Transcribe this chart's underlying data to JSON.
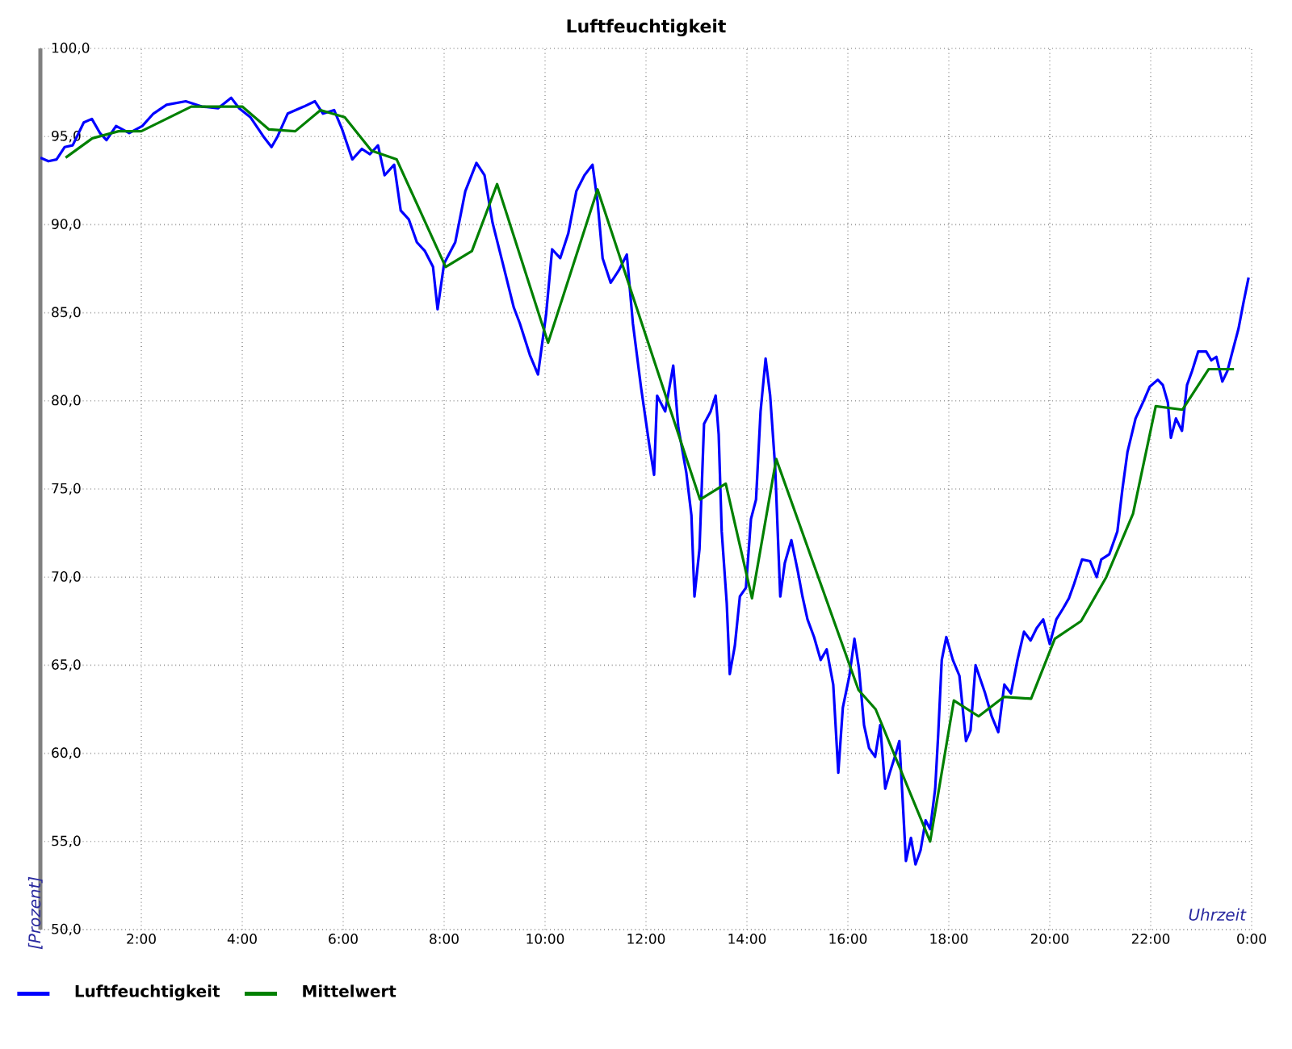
{
  "chart_data": {
    "type": "line",
    "title": "Luftfeuchtigkeit",
    "xlabel": "Uhrzeit",
    "ylabel": "[Prozent]",
    "xlim": [
      0,
      24
    ],
    "ylim": [
      50,
      100
    ],
    "xticks": [
      {
        "value": 0,
        "label": null
      },
      {
        "value": 2,
        "label": "2:00"
      },
      {
        "value": 4,
        "label": "4:00"
      },
      {
        "value": 6,
        "label": "6:00"
      },
      {
        "value": 8,
        "label": "8:00"
      },
      {
        "value": 10,
        "label": "10:00"
      },
      {
        "value": 12,
        "label": "12:00"
      },
      {
        "value": 14,
        "label": "14:00"
      },
      {
        "value": 16,
        "label": "16:00"
      },
      {
        "value": 18,
        "label": "18:00"
      },
      {
        "value": 20,
        "label": "20:00"
      },
      {
        "value": 22,
        "label": "22:00"
      },
      {
        "value": 24,
        "label": "0:00"
      }
    ],
    "yticks": [
      {
        "value": 50,
        "label": "50,0"
      },
      {
        "value": 55,
        "label": "55,0"
      },
      {
        "value": 60,
        "label": "60,0"
      },
      {
        "value": 65,
        "label": "65,0"
      },
      {
        "value": 70,
        "label": "70,0"
      },
      {
        "value": 75,
        "label": "75,0"
      },
      {
        "value": 80,
        "label": "80,0"
      },
      {
        "value": 85,
        "label": "85,0"
      },
      {
        "value": 90,
        "label": "90,0"
      },
      {
        "value": 95,
        "label": "95,0"
      },
      {
        "value": 100,
        "label": "100,0"
      }
    ],
    "grid": true,
    "legend": "bottom",
    "series": [
      {
        "name": "Luftfeuchtigkeit",
        "color": "#0000ff",
        "x": [
          0,
          0.16,
          0.32,
          0.48,
          0.64,
          0.86,
          1.02,
          1.18,
          1.31,
          1.5,
          1.76,
          2.02,
          2.24,
          2.5,
          2.88,
          3.2,
          3.52,
          3.78,
          3.94,
          4.16,
          4.42,
          4.58,
          4.7,
          4.9,
          5.22,
          5.44,
          5.6,
          5.82,
          5.98,
          6.18,
          6.37,
          6.53,
          6.69,
          6.82,
          7.01,
          7.14,
          7.3,
          7.46,
          7.62,
          7.78,
          7.87,
          8.0,
          8.22,
          8.42,
          8.64,
          8.8,
          8.96,
          9.18,
          9.38,
          9.5,
          9.7,
          9.86,
          10.02,
          10.14,
          10.3,
          10.46,
          10.62,
          10.78,
          10.94,
          11.04,
          11.14,
          11.3,
          11.46,
          11.62,
          11.74,
          11.9,
          12.06,
          12.16,
          12.22,
          12.38,
          12.54,
          12.64,
          12.8,
          12.9,
          12.96,
          13.06,
          13.15,
          13.28,
          13.38,
          13.44,
          13.5,
          13.6,
          13.66,
          13.76,
          13.86,
          13.98,
          14.08,
          14.18,
          14.27,
          14.37,
          14.46,
          14.56,
          14.66,
          14.75,
          14.88,
          15.01,
          15.1,
          15.2,
          15.33,
          15.46,
          15.58,
          15.71,
          15.81,
          15.9,
          16.03,
          16.13,
          16.22,
          16.32,
          16.42,
          16.54,
          16.64,
          16.74,
          16.83,
          16.93,
          17.02,
          17.09,
          17.15,
          17.25,
          17.34,
          17.44,
          17.54,
          17.63,
          17.73,
          17.79,
          17.86,
          17.95,
          18.08,
          18.21,
          18.34,
          18.43,
          18.53,
          18.72,
          18.85,
          18.98,
          19.1,
          19.23,
          19.36,
          19.49,
          19.62,
          19.74,
          19.87,
          20.0,
          20.13,
          20.26,
          20.38,
          20.48,
          20.64,
          20.8,
          20.93,
          21.02,
          21.18,
          21.34,
          21.44,
          21.54,
          21.7,
          21.86,
          21.98,
          22.14,
          22.24,
          22.34,
          22.4,
          22.5,
          22.62,
          22.72,
          22.82,
          22.94,
          23.1,
          23.2,
          23.3,
          23.42,
          23.52,
          23.62,
          23.74,
          23.84,
          23.94
        ],
        "values": [
          93.8,
          93.6,
          93.7,
          94.4,
          94.5,
          95.8,
          96.0,
          95.2,
          94.8,
          95.6,
          95.2,
          95.6,
          96.3,
          96.8,
          97.0,
          96.7,
          96.6,
          97.2,
          96.6,
          96.1,
          95.0,
          94.4,
          95.0,
          96.3,
          96.7,
          97.0,
          96.3,
          96.5,
          95.4,
          93.7,
          94.3,
          94.0,
          94.5,
          92.8,
          93.4,
          90.8,
          90.3,
          89.0,
          88.5,
          87.6,
          85.2,
          87.8,
          89.0,
          91.9,
          93.5,
          92.8,
          90.1,
          87.6,
          85.3,
          84.4,
          82.6,
          81.5,
          84.9,
          88.6,
          88.1,
          89.5,
          91.9,
          92.8,
          93.4,
          91.3,
          88.1,
          86.7,
          87.4,
          88.3,
          84.4,
          80.8,
          77.6,
          75.8,
          80.3,
          79.4,
          82.0,
          78.5,
          75.9,
          73.5,
          68.9,
          71.6,
          78.7,
          79.4,
          80.3,
          78.1,
          72.6,
          68.5,
          64.5,
          66.1,
          68.9,
          69.4,
          73.3,
          74.4,
          79.4,
          82.4,
          80.3,
          76.2,
          68.9,
          70.8,
          72.1,
          70.3,
          68.9,
          67.6,
          66.6,
          65.3,
          65.9,
          63.9,
          58.9,
          62.6,
          64.4,
          66.5,
          64.8,
          61.6,
          60.3,
          59.8,
          61.6,
          58.0,
          58.9,
          59.8,
          60.7,
          57.1,
          53.9,
          55.2,
          53.7,
          54.5,
          56.2,
          55.7,
          58.0,
          61.1,
          65.3,
          66.6,
          65.3,
          64.4,
          60.7,
          61.3,
          65.0,
          63.4,
          62.1,
          61.2,
          63.9,
          63.4,
          65.3,
          66.9,
          66.4,
          67.1,
          67.6,
          66.2,
          67.6,
          68.2,
          68.8,
          69.6,
          71.0,
          70.9,
          70.0,
          71.0,
          71.3,
          72.6,
          75.0,
          77.1,
          79.0,
          80.0,
          80.8,
          81.2,
          80.9,
          79.9,
          77.9,
          79.0,
          78.3,
          80.9,
          81.7,
          82.8,
          82.8,
          82.3,
          82.5,
          81.1,
          81.7,
          82.8,
          84.1,
          85.6,
          87.0
        ]
      },
      {
        "name": "Mittelwert",
        "color": "#008000",
        "x": [
          0.5,
          1.03,
          1.55,
          2.0,
          2.99,
          4.0,
          4.53,
          5.05,
          5.55,
          6.03,
          6.56,
          7.06,
          8.03,
          8.55,
          9.05,
          10.06,
          11.04,
          13.07,
          13.58,
          14.1,
          14.58,
          16.21,
          16.55,
          17.63,
          18.1,
          18.59,
          19.09,
          19.63,
          20.1,
          20.62,
          21.12,
          21.65,
          22.1,
          22.63,
          23.15,
          23.65
        ],
        "values": [
          93.8,
          94.9,
          95.3,
          95.3,
          96.7,
          96.7,
          95.4,
          95.3,
          96.5,
          96.1,
          94.2,
          93.7,
          87.6,
          88.5,
          92.3,
          83.3,
          92.0,
          74.4,
          75.3,
          68.8,
          76.7,
          63.6,
          62.5,
          55.0,
          63.0,
          62.1,
          63.2,
          63.1,
          66.5,
          67.5,
          70.0,
          73.6,
          79.7,
          79.5,
          81.8,
          81.8
        ]
      }
    ]
  }
}
